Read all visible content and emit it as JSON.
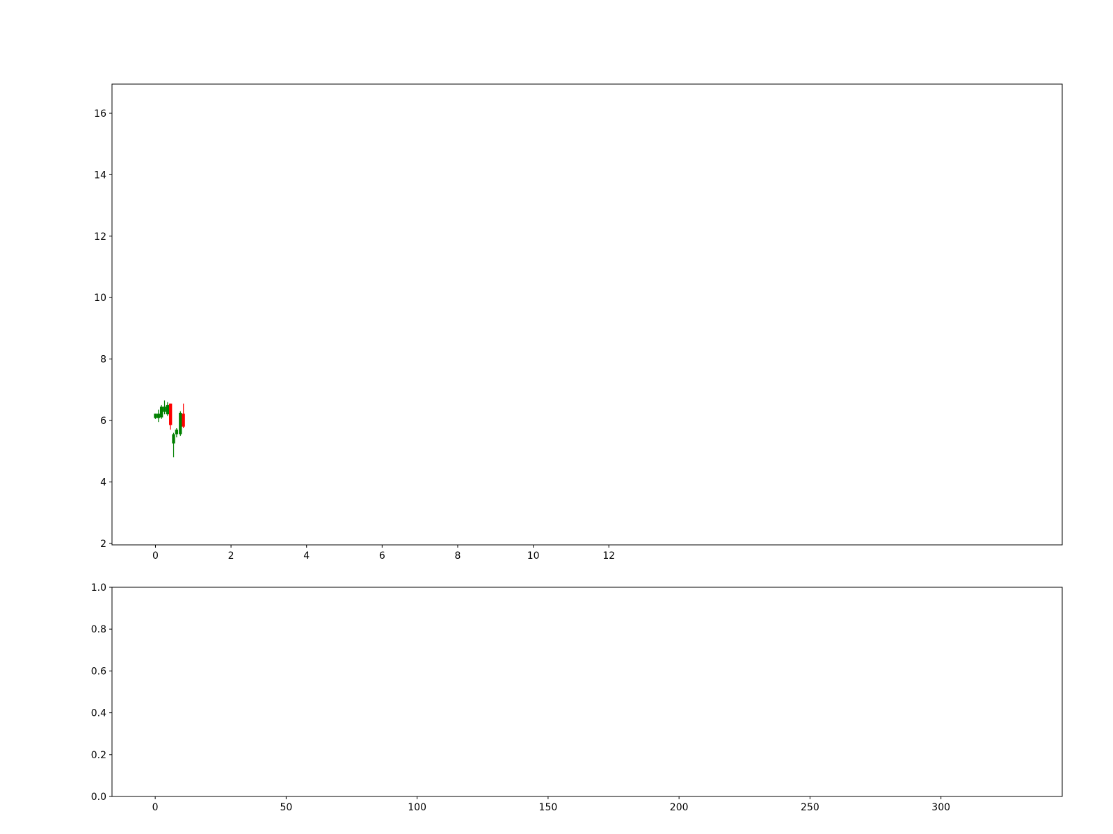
{
  "chart_data": [
    {
      "type": "candlestick",
      "title": "",
      "xlabel": "",
      "ylabel": "",
      "xlim": [
        -1.15,
        24.0
      ],
      "ylim": [
        1.95,
        16.95
      ],
      "xticks": [
        0,
        2,
        4,
        6,
        8,
        10,
        12
      ],
      "yticks": [
        2,
        4,
        6,
        8,
        10,
        12,
        14,
        16
      ],
      "grid": false,
      "up_color": "#008000",
      "down_color": "#ff0000",
      "candle_width": 0.08,
      "candles": [
        {
          "x": 0.0,
          "open": 6.08,
          "high": 6.22,
          "low": 6.05,
          "close": 6.22
        },
        {
          "x": 0.08,
          "open": 6.08,
          "high": 6.35,
          "low": 5.95,
          "close": 6.22
        },
        {
          "x": 0.16,
          "open": 6.1,
          "high": 6.5,
          "low": 6.05,
          "close": 6.45
        },
        {
          "x": 0.24,
          "open": 6.28,
          "high": 6.65,
          "low": 6.2,
          "close": 6.45
        },
        {
          "x": 0.32,
          "open": 6.2,
          "high": 6.6,
          "low": 6.15,
          "close": 6.5
        },
        {
          "x": 0.4,
          "open": 6.55,
          "high": 6.55,
          "low": 5.7,
          "close": 5.85
        },
        {
          "x": 0.48,
          "open": 5.25,
          "high": 5.6,
          "low": 4.8,
          "close": 5.55
        },
        {
          "x": 0.56,
          "open": 5.55,
          "high": 5.75,
          "low": 5.45,
          "close": 5.7
        },
        {
          "x": 0.66,
          "open": 5.55,
          "high": 6.3,
          "low": 5.5,
          "close": 6.25
        },
        {
          "x": 0.74,
          "open": 6.22,
          "high": 6.55,
          "low": 5.75,
          "close": 5.8
        }
      ]
    },
    {
      "type": "bar",
      "title": "",
      "xlabel": "",
      "ylabel": "",
      "xlim": [
        -16.5,
        346.3
      ],
      "ylim": [
        0.0,
        1.0
      ],
      "xticks": [
        0,
        50,
        100,
        150,
        200,
        250,
        300
      ],
      "yticks": [
        "0.0",
        "0.2",
        "0.4",
        "0.6",
        "0.8",
        "1.0"
      ],
      "grid": false,
      "values": []
    }
  ]
}
